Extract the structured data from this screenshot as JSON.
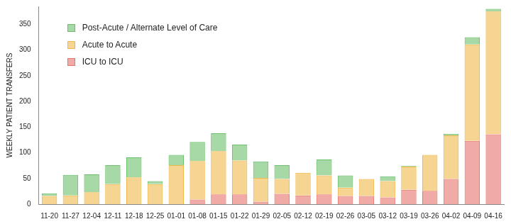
{
  "chart_data": {
    "type": "bar",
    "stacked": true,
    "grid": false,
    "legend": "upper left",
    "y_label": "WEEKLY PATIENT TRANSFERS",
    "categories": [
      "11-20",
      "11-27",
      "12-04",
      "12-11",
      "12-18",
      "12-25",
      "01-01",
      "01-08",
      "01-15",
      "01-22",
      "01-29",
      "02-05",
      "02-12",
      "02-19",
      "02-26",
      "03-05",
      "03-12",
      "03-19",
      "03-26",
      "04-02",
      "04-09",
      "04-16"
    ],
    "series": [
      {
        "name": "ICU to ICU",
        "color": "#e8736c",
        "values": [
          0,
          0,
          0,
          0,
          0,
          0,
          0,
          9,
          19,
          19,
          5,
          20,
          17,
          19,
          16,
          16,
          13,
          28,
          26,
          49,
          123,
          136
        ]
      },
      {
        "name": "Acute to Acute",
        "color": "#f0b84a",
        "values": [
          16,
          17,
          23,
          39,
          52,
          39,
          76,
          75,
          84,
          66,
          46,
          29,
          44,
          37,
          16,
          33,
          32,
          45,
          70,
          85,
          188,
          239
        ]
      },
      {
        "name": "Post-Acute / Alternate Level of Care",
        "color": "#6cbf6a",
        "values": [
          5,
          40,
          35,
          37,
          39,
          6,
          20,
          37,
          35,
          31,
          32,
          27,
          0,
          31,
          24,
          0,
          9,
          2,
          0,
          3,
          14,
          5
        ]
      }
    ],
    "ylim": [
      0,
      385
    ],
    "yticks": [
      0,
      50,
      100,
      150,
      200,
      250,
      300,
      350
    ]
  }
}
